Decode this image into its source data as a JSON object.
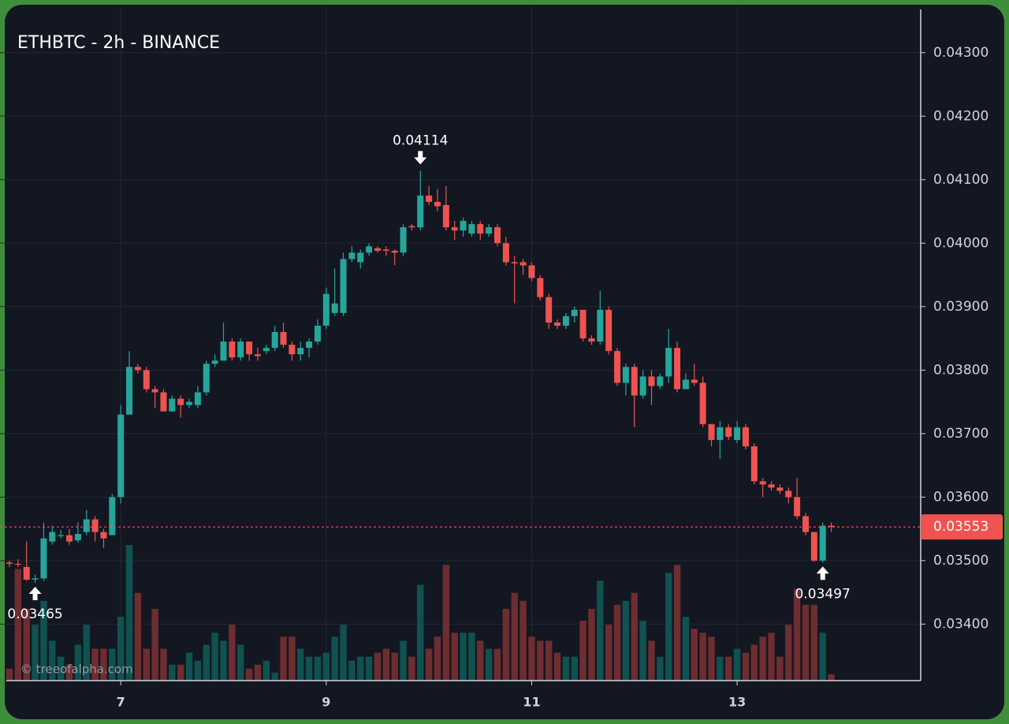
{
  "chart_data": {
    "type": "candlestick",
    "title": "ETHBTC - 2h - BINANCE",
    "watermark": "© treeofalpha.com",
    "up_color": "#26a69a",
    "down_color": "#ef5350",
    "volume_up_color": "#0f5250",
    "volume_down_color": "#6e2d30",
    "ylim": [
      0.03311,
      0.04373
    ],
    "yticks": [
      {
        "value": 0.034,
        "label": "0.03400"
      },
      {
        "value": 0.035,
        "label": "0.03500"
      },
      {
        "value": 0.036,
        "label": "0.03600"
      },
      {
        "value": 0.037,
        "label": "0.03700"
      },
      {
        "value": 0.038,
        "label": "0.03800"
      },
      {
        "value": 0.039,
        "label": "0.03900"
      },
      {
        "value": 0.04,
        "label": "0.04000"
      },
      {
        "value": 0.041,
        "label": "0.04100"
      },
      {
        "value": 0.042,
        "label": "0.04200"
      },
      {
        "value": 0.043,
        "label": "0.04300"
      }
    ],
    "xticks": [
      {
        "value": 13,
        "label": "7"
      },
      {
        "value": 37,
        "label": "9"
      },
      {
        "value": 61,
        "label": "11"
      },
      {
        "value": 85,
        "label": "13"
      }
    ],
    "grid": true,
    "last_price": 0.03553,
    "max_marker": 0.04114,
    "min_markers": [
      0.03465,
      0.03497
    ],
    "open": [
      0.03497,
      0.03495,
      0.0349,
      0.0347,
      0.03472,
      0.0353,
      0.0354,
      0.0354,
      0.03532,
      0.03545,
      0.03565,
      0.03545,
      0.0354,
      0.036,
      0.0373,
      0.03805,
      0.038,
      0.0377,
      0.03765,
      0.03735,
      0.03755,
      0.03745,
      0.03745,
      0.03765,
      0.0381,
      0.03815,
      0.03845,
      0.0382,
      0.03845,
      0.03825,
      0.0383,
      0.03835,
      0.0386,
      0.0384,
      0.03825,
      0.03835,
      0.03845,
      0.0387,
      0.0389,
      0.0389,
      0.03975,
      0.0397,
      0.03985,
      0.03992,
      0.0399,
      0.03988,
      0.03985,
      0.04027,
      0.04025,
      0.04075,
      0.04065,
      0.0406,
      0.04025,
      0.0402,
      0.04015,
      0.0403,
      0.04015,
      0.04025,
      0.04,
      0.0397,
      0.0397,
      0.03965,
      0.03945,
      0.03915,
      0.03875,
      0.0387,
      0.03885,
      0.03895,
      0.0385,
      0.03845,
      0.03895,
      0.0383,
      0.0378,
      0.03805,
      0.0376,
      0.0379,
      0.03775,
      0.0379,
      0.03835,
      0.0377,
      0.03785,
      0.0378,
      0.03715,
      0.0369,
      0.0371,
      0.0369,
      0.0371,
      0.0368,
      0.03625,
      0.0362,
      0.03615,
      0.0361,
      0.036,
      0.0357,
      0.03545,
      0.035,
      0.03555
    ],
    "close": [
      0.03495,
      0.03494,
      0.0347,
      0.03472,
      0.03535,
      0.03545,
      0.0354,
      0.0353,
      0.03542,
      0.03565,
      0.03545,
      0.03535,
      0.036,
      0.0373,
      0.03805,
      0.038,
      0.0377,
      0.03765,
      0.03735,
      0.03755,
      0.03745,
      0.0375,
      0.03765,
      0.0381,
      0.03815,
      0.03845,
      0.0382,
      0.03845,
      0.03825,
      0.03822,
      0.03835,
      0.0386,
      0.0384,
      0.03825,
      0.03835,
      0.03845,
      0.0387,
      0.0392,
      0.03905,
      0.03975,
      0.03985,
      0.03985,
      0.03995,
      0.03988,
      0.03988,
      0.03985,
      0.04025,
      0.04025,
      0.04075,
      0.04065,
      0.04058,
      0.04025,
      0.0402,
      0.04035,
      0.0403,
      0.04015,
      0.04025,
      0.04,
      0.0397,
      0.03968,
      0.03965,
      0.03945,
      0.03915,
      0.03875,
      0.0387,
      0.03885,
      0.03895,
      0.0385,
      0.03845,
      0.03895,
      0.0383,
      0.0378,
      0.03805,
      0.0376,
      0.0379,
      0.03775,
      0.0379,
      0.03835,
      0.0377,
      0.03785,
      0.0378,
      0.03715,
      0.0369,
      0.0371,
      0.03695,
      0.0371,
      0.0368,
      0.03625,
      0.0362,
      0.03615,
      0.0361,
      0.036,
      0.0357,
      0.03545,
      0.035,
      0.03555,
      0.03553
    ],
    "high": [
      0.035,
      0.03502,
      0.0353,
      0.03478,
      0.0356,
      0.03555,
      0.03548,
      0.0355,
      0.0356,
      0.0358,
      0.0357,
      0.0355,
      0.03605,
      0.03745,
      0.0383,
      0.0381,
      0.03805,
      0.03775,
      0.0377,
      0.0376,
      0.0376,
      0.03755,
      0.03775,
      0.03815,
      0.03825,
      0.03875,
      0.0385,
      0.0385,
      0.03845,
      0.03835,
      0.0384,
      0.0387,
      0.03875,
      0.03845,
      0.03845,
      0.0385,
      0.0388,
      0.0393,
      0.0396,
      0.03985,
      0.03995,
      0.0399,
      0.04,
      0.03995,
      0.03995,
      0.0399,
      0.0403,
      0.0403,
      0.04114,
      0.0409,
      0.04085,
      0.0409,
      0.04035,
      0.0404,
      0.04035,
      0.04035,
      0.0403,
      0.0403,
      0.0401,
      0.0398,
      0.03975,
      0.0397,
      0.0395,
      0.0392,
      0.0388,
      0.0389,
      0.039,
      0.03895,
      0.03855,
      0.03925,
      0.039,
      0.03835,
      0.0381,
      0.0381,
      0.038,
      0.038,
      0.03795,
      0.03865,
      0.03845,
      0.03795,
      0.0381,
      0.0379,
      0.03715,
      0.0372,
      0.03715,
      0.0372,
      0.03715,
      0.03685,
      0.0363,
      0.03625,
      0.0362,
      0.03615,
      0.0363,
      0.03575,
      0.03545,
      0.0356,
      0.0356
    ],
    "low": [
      0.0349,
      0.0349,
      0.03468,
      0.03465,
      0.03468,
      0.03525,
      0.03535,
      0.03525,
      0.03528,
      0.0354,
      0.0353,
      0.0352,
      0.0354,
      0.0359,
      0.0373,
      0.03795,
      0.03765,
      0.0374,
      0.03735,
      0.03735,
      0.03725,
      0.0374,
      0.0374,
      0.0376,
      0.03805,
      0.03815,
      0.03815,
      0.03815,
      0.03815,
      0.03815,
      0.03825,
      0.0383,
      0.03835,
      0.03815,
      0.03815,
      0.0382,
      0.0384,
      0.03865,
      0.03885,
      0.03885,
      0.0397,
      0.0396,
      0.0398,
      0.03985,
      0.0398,
      0.03965,
      0.0398,
      0.0402,
      0.0402,
      0.0406,
      0.0405,
      0.0402,
      0.04005,
      0.0401,
      0.0401,
      0.04005,
      0.0401,
      0.03995,
      0.03965,
      0.03905,
      0.0395,
      0.0394,
      0.0391,
      0.03865,
      0.03865,
      0.03865,
      0.03875,
      0.03845,
      0.0384,
      0.0384,
      0.03825,
      0.03775,
      0.0376,
      0.0371,
      0.03755,
      0.03745,
      0.0377,
      0.0378,
      0.03765,
      0.0377,
      0.03775,
      0.0371,
      0.0368,
      0.0366,
      0.0369,
      0.03685,
      0.03675,
      0.0362,
      0.036,
      0.0361,
      0.03605,
      0.0359,
      0.03565,
      0.0354,
      0.03498,
      0.03497,
      0.03545
    ],
    "volume": [
      15,
      140,
      90,
      70,
      100,
      50,
      30,
      20,
      45,
      70,
      40,
      40,
      40,
      80,
      170,
      110,
      40,
      90,
      40,
      20,
      20,
      35,
      25,
      45,
      60,
      50,
      70,
      45,
      15,
      20,
      25,
      10,
      55,
      55,
      40,
      30,
      30,
      35,
      55,
      70,
      25,
      30,
      30,
      35,
      40,
      35,
      50,
      30,
      120,
      40,
      55,
      145,
      60,
      60,
      60,
      50,
      40,
      40,
      90,
      110,
      100,
      55,
      50,
      50,
      35,
      30,
      30,
      75,
      90,
      125,
      70,
      95,
      100,
      110,
      75,
      50,
      30,
      135,
      145,
      80,
      65,
      60,
      55,
      30,
      30,
      40,
      35,
      45,
      55,
      60,
      30,
      70,
      115,
      95,
      95,
      60,
      8
    ]
  }
}
